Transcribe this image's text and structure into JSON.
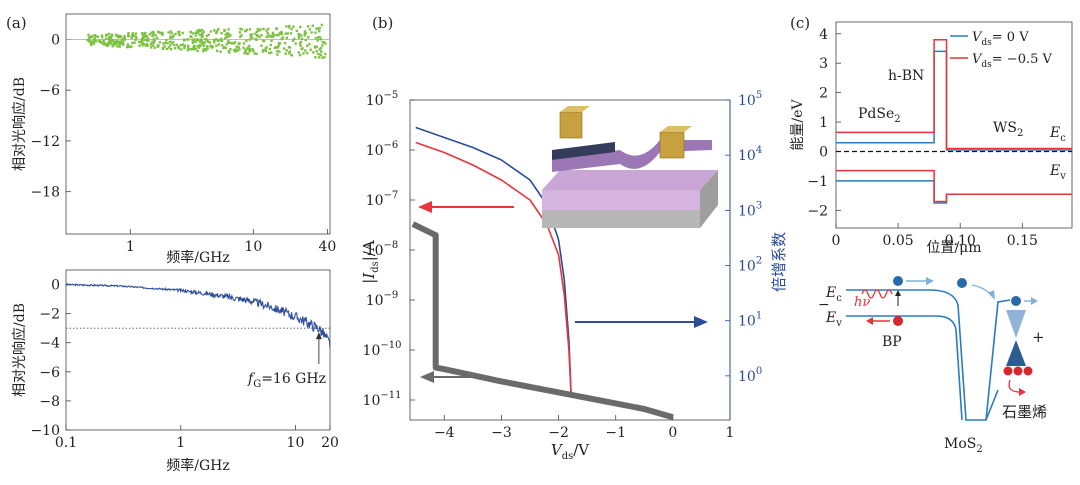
{
  "panels": {
    "a_label": "(a)",
    "b_label": "(b)",
    "c_label": "(c)"
  },
  "chart_data": [
    {
      "id": "a-top",
      "type": "scatter",
      "xlabel": "频率/GHz",
      "ylabel": "相对光响应/dB",
      "xscale": "log",
      "xlim": [
        0.3,
        42
      ],
      "ylim": [
        -23,
        3
      ],
      "xticks": [
        1,
        10,
        40
      ],
      "xtick_labels": [
        "1",
        "10",
        "40"
      ],
      "yticks": [
        0,
        -6,
        -12,
        -18
      ],
      "ytick_labels": [
        "0",
        "−6",
        "−12",
        "−18"
      ],
      "color": "#7dc242",
      "series": [
        {
          "x": [
            0.3,
            42
          ],
          "y": [
            0,
            0
          ]
        }
      ]
    },
    {
      "id": "a-bottom",
      "type": "line",
      "xlabel": "频率/GHz",
      "ylabel": "相对光响应/dB",
      "xscale": "log",
      "xlim": [
        0.1,
        20
      ],
      "ylim": [
        -10,
        1
      ],
      "xticks": [
        0.1,
        1,
        10,
        20
      ],
      "xtick_labels": [
        "0.1",
        "1",
        "10",
        "20"
      ],
      "yticks": [
        0,
        -2,
        -4,
        -6,
        -8,
        -10
      ],
      "ytick_labels": [
        "0",
        "−2",
        "−4",
        "−6",
        "−8",
        "−10"
      ],
      "color": "#2f4f9e",
      "reference_line": {
        "y": -3
      },
      "annotation": {
        "x": 16,
        "y": -3,
        "prefix": "f",
        "sub": "G",
        "suffix": "=16 GHz"
      },
      "series": [
        {
          "x": [
            0.1,
            0.3,
            1,
            2,
            4,
            6,
            8,
            10,
            12,
            14,
            16,
            18,
            20
          ],
          "y": [
            0,
            -0.1,
            -0.4,
            -0.7,
            -1.1,
            -1.5,
            -1.9,
            -2.2,
            -2.5,
            -2.8,
            -3.0,
            -3.5,
            -4.1
          ]
        }
      ]
    },
    {
      "id": "b",
      "type": "line",
      "xlabel_main": "V",
      "xlabel_sub": "ds",
      "xlabel_unit": "/V",
      "ylabel_left_pre": "|I",
      "ylabel_left_sub": "ds",
      "ylabel_left_post": "|/A",
      "ylabel_right": "倍增系数",
      "xlim": [
        -4.6,
        1
      ],
      "xticks": [
        -4,
        -3,
        -2,
        -1,
        0,
        1
      ],
      "xtick_labels": [
        "−4",
        "−3",
        "−2",
        "−1",
        "0",
        "1"
      ],
      "ylim_left_log10": [
        -11.4,
        -5
      ],
      "yticks_left": [
        -5,
        -6,
        -7,
        -8,
        -9,
        -10,
        -11
      ],
      "ylim_right_log10": [
        -0.8,
        5
      ],
      "yticks_right": [
        5,
        4,
        3,
        2,
        1,
        0
      ],
      "series": [
        {
          "color": "#2b4c9b",
          "x": [
            -4.5,
            -4.0,
            -3.5,
            -3.0,
            -2.5,
            -2.2,
            -2.0,
            -1.9,
            -1.82,
            -1.78,
            -1.5,
            -1.0,
            -0.5,
            0.0
          ],
          "y": [
            -5.55,
            -5.75,
            -5.95,
            -6.2,
            -6.6,
            -7.1,
            -7.8,
            -8.6,
            -9.8,
            -10.9,
            -10.95,
            -11.05,
            -11.18,
            -11.35
          ]
        },
        {
          "color": "#e8343a",
          "x": [
            -4.5,
            -4.0,
            -3.5,
            -3.0,
            -2.5,
            -2.2,
            -2.0,
            -1.9,
            -1.82,
            -1.78,
            -1.5,
            -1.0,
            -0.5,
            0.0
          ],
          "y": [
            -5.85,
            -6.05,
            -6.3,
            -6.6,
            -7.0,
            -7.5,
            -8.1,
            -8.9,
            -10.0,
            -10.9,
            -10.95,
            -11.05,
            -11.18,
            -11.35
          ]
        },
        {
          "color": "#6a6a6a",
          "axis": "right",
          "x": [
            -4.55,
            -4.15,
            -4.15,
            -4.0,
            -3.0,
            -2.0,
            -1.0,
            -0.5,
            0.0
          ],
          "y": [
            2.75,
            2.55,
            0.15,
            0.12,
            -0.1,
            -0.3,
            -0.5,
            -0.6,
            -0.75
          ]
        }
      ]
    },
    {
      "id": "c",
      "type": "line",
      "xlabel": "位置/μm",
      "ylabel": "能量/eV",
      "xlim": [
        0,
        0.19
      ],
      "ylim": [
        -2.6,
        4.4
      ],
      "xticks": [
        0,
        0.05,
        0.1,
        0.15
      ],
      "xtick_labels": [
        "0",
        "0.05",
        "0.10",
        "0.15"
      ],
      "yticks": [
        4,
        3,
        2,
        1,
        0,
        -1,
        -2
      ],
      "ytick_labels": [
        "4",
        "3",
        "2",
        "1",
        "0",
        "−1",
        "−2"
      ],
      "annotations": {
        "hbn": "h-BN",
        "pdse2": "PdSe",
        "pdse2_sub": "2",
        "ws2": "WS",
        "ws2_sub": "2",
        "ec": "E",
        "ec_sub": "c",
        "ev": "E",
        "ev_sub": "v"
      },
      "series": [
        {
          "name_main": "V",
          "name_sub": "ds",
          "name_value": "= 0 V",
          "color": "#2a7bbf",
          "x": [
            0,
            0.079,
            0.079,
            0.089,
            0.089,
            0.19
          ],
          "y": [
            0.3,
            0.3,
            3.4,
            3.4,
            0.05,
            0.05
          ]
        },
        {
          "name_main": "V",
          "name_sub": "ds",
          "name_value": "= −0.5 V",
          "color": "#e8343a",
          "x": [
            0,
            0.079,
            0.079,
            0.089,
            0.089,
            0.19
          ],
          "y": [
            0.65,
            0.65,
            3.8,
            3.8,
            0.1,
            0.1
          ]
        }
      ]
    }
  ],
  "diagram": {
    "ec": "E",
    "ec_sub": "c",
    "ev": "E",
    "ev_sub": "v",
    "hv": "hν",
    "bp": "BP",
    "mos2": "MoS",
    "mos2_sub": "2",
    "graphene": "石墨烯",
    "minus": "−",
    "plus": "+"
  }
}
